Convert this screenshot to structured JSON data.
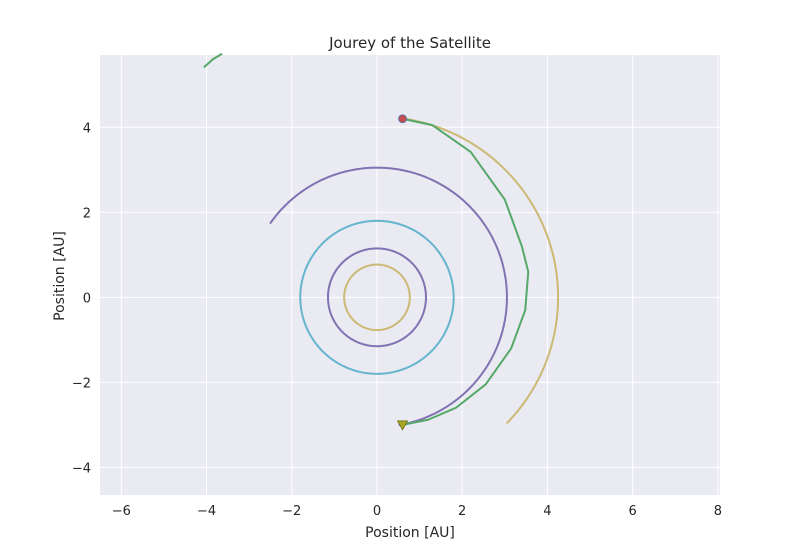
{
  "chart_data": {
    "type": "line",
    "title": "Jourey of the Satellite",
    "xlabel": "Position [AU]",
    "ylabel": "Position [AU]",
    "xlim": [
      -6.5,
      8.05
    ],
    "ylim": [
      -4.65,
      5.7
    ],
    "xticks": [
      -6,
      -4,
      -2,
      0,
      2,
      4,
      6,
      8
    ],
    "xtick_labels": [
      "−6",
      "−4",
      "−2",
      "0",
      "2",
      "4",
      "6",
      "8"
    ],
    "yticks": [
      -4,
      -2,
      0,
      2,
      4
    ],
    "ytick_labels": [
      "−4",
      "−2",
      "0",
      "2",
      "4"
    ],
    "grid": true,
    "background": "#eaeaf2",
    "series": [
      {
        "kind": "circle",
        "center": [
          0,
          0
        ],
        "radius": 0.77,
        "color": "#ccb974"
      },
      {
        "kind": "circle",
        "center": [
          0,
          0
        ],
        "radius": 1.15,
        "color": "#8172b2"
      },
      {
        "kind": "circle",
        "center": [
          0,
          0
        ],
        "radius": 1.8,
        "color": "#64b5cd"
      },
      {
        "kind": "arc",
        "center": [
          0,
          0
        ],
        "radius": 3.05,
        "start_deg": 145,
        "end_deg": -80,
        "color": "#8172b2"
      },
      {
        "kind": "arc",
        "center": [
          0,
          0
        ],
        "radius": 4.25,
        "start_deg": 81.5,
        "end_deg": -44,
        "color": "#ccb974"
      },
      {
        "kind": "curve",
        "points": [
          [
            0.6,
            4.2
          ],
          [
            1.3,
            4.05
          ],
          [
            2.2,
            3.42
          ],
          [
            3.0,
            2.3
          ],
          [
            3.4,
            1.2
          ],
          [
            3.55,
            0.6
          ],
          [
            3.48,
            -0.3
          ],
          [
            3.15,
            -1.2
          ],
          [
            2.55,
            -2.05
          ],
          [
            1.85,
            -2.6
          ],
          [
            1.2,
            -2.88
          ],
          [
            0.6,
            -3.0
          ]
        ],
        "color": "#55a868"
      },
      {
        "kind": "curve",
        "points": [
          [
            -4.05,
            5.42
          ],
          [
            -3.85,
            5.6
          ],
          [
            -3.65,
            5.72
          ]
        ],
        "color": "#55a868"
      }
    ],
    "markers": [
      {
        "shape": "circle",
        "x": 0.6,
        "y": 4.2,
        "color": "#c44e52"
      },
      {
        "shape": "triangle-down",
        "x": 0.6,
        "y": -3.0,
        "color": "#a8a820"
      }
    ]
  }
}
